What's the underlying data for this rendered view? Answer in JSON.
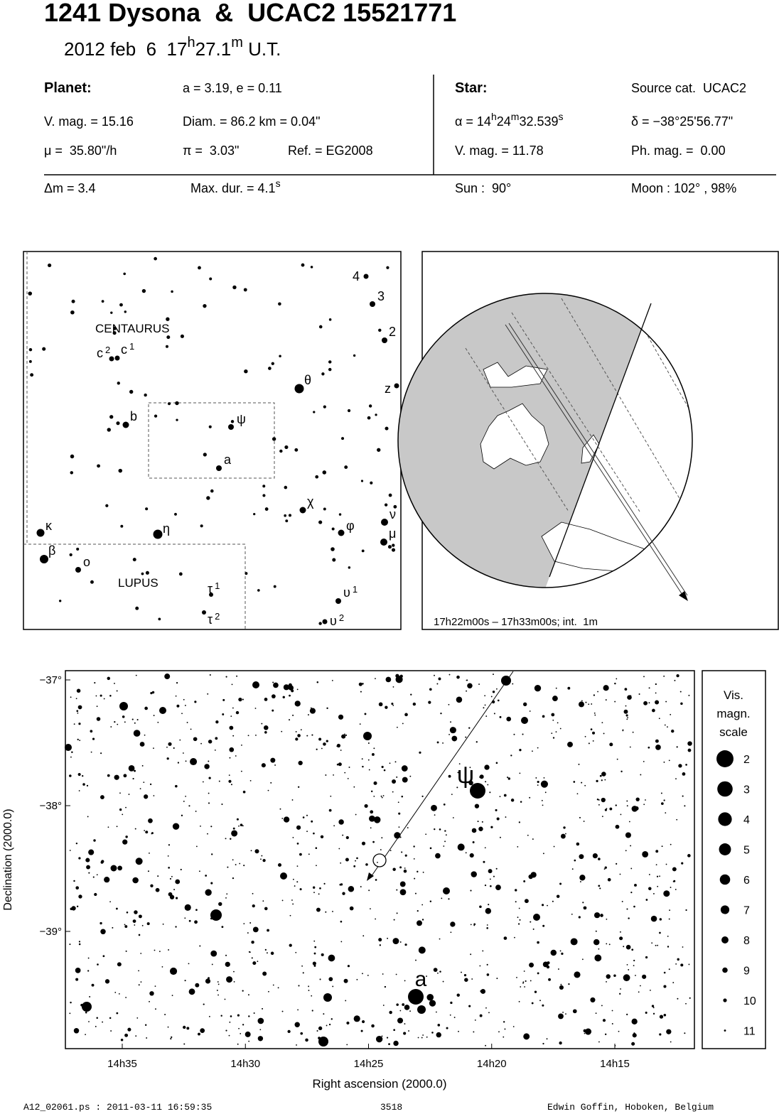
{
  "header": {
    "title": "1241 Dysona  &  UCAC2 15521771",
    "subtitle": [
      "2012 feb  6  17",
      "h",
      "27.1",
      "m",
      " U.T."
    ]
  },
  "info": {
    "rows": [
      [
        "Planet:",
        "a = 3.19, e = 0.11",
        "Star:",
        "Source cat.  UCAC2"
      ],
      [
        "V. mag. = 15.16",
        "Diam. = 86.2 km = 0.04\"",
        "α = 14h24m32.539s",
        "δ = −38°25'56.77\""
      ],
      [
        "μ =  35.80\"/h",
        "π =  3.03\"",
        "Ref. = EG2008",
        "V. mag. = 11.78",
        "Ph. mag. =  0.00"
      ],
      [
        "Δm = 3.4",
        "Max. dur. = 4.1s",
        "Sun :  90°",
        "Moon : 102° , 98%"
      ]
    ]
  },
  "finder_map": {
    "constellations": [
      "CENTAURUS",
      "LUPUS"
    ],
    "stars": [
      {
        "label": "4"
      },
      {
        "label": "3"
      },
      {
        "label": "2"
      },
      {
        "label": "z"
      },
      {
        "label": "θ"
      },
      {
        "label": "c",
        "sup": "2"
      },
      {
        "label": "c",
        "sup": "1"
      },
      {
        "label": "ψ"
      },
      {
        "label": "b"
      },
      {
        "label": "a"
      },
      {
        "label": "χ"
      },
      {
        "label": "κ"
      },
      {
        "label": "η"
      },
      {
        "label": "ν"
      },
      {
        "label": "φ"
      },
      {
        "label": "μ"
      },
      {
        "label": "β"
      },
      {
        "label": "ο"
      },
      {
        "label": "τ",
        "sup": "1"
      },
      {
        "label": "τ",
        "sup": "2"
      },
      {
        "label": "υ",
        "sup": "1"
      },
      {
        "label": "υ",
        "sup": "2"
      }
    ]
  },
  "globe": {
    "caption": "17h22m00s – 17h33m00s; int.  1m"
  },
  "star_chart": {
    "xticks": [
      "14h35",
      "14h30",
      "14h25",
      "14h20",
      "14h15"
    ],
    "yticks": [
      "−37°",
      "−38°",
      "−39°"
    ],
    "xlabel": "Right ascension (2000.0)",
    "ylabel": "Declination (2000.0)",
    "object_labels": [
      "ψ",
      "a"
    ],
    "legend": {
      "title_lines": [
        "Vis.",
        "magn.",
        "scale"
      ],
      "magnitudes": [
        2,
        3,
        4,
        5,
        6,
        7,
        8,
        9,
        10,
        11
      ]
    }
  },
  "footer": [
    "A12_02061.ps : 2011-03-11 16:59:35",
    "3518",
    "Edwin Goffin, Hoboken, Belgium"
  ]
}
